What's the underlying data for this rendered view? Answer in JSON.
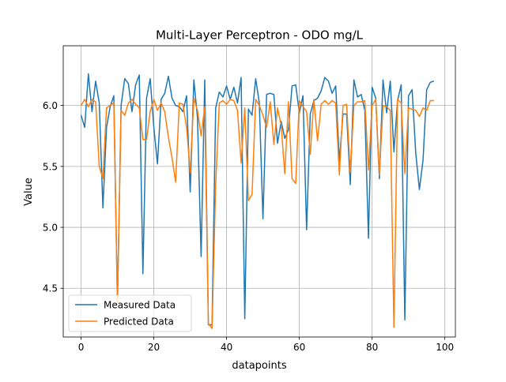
{
  "chart_data": {
    "type": "line",
    "title": "Multi-Layer Perceptron - ODO mg/L",
    "xlabel": "datapoints",
    "ylabel": "Value",
    "xlim": [
      -4.9,
      102.9
    ],
    "ylim": [
      4.1,
      6.49
    ],
    "xticks": [
      0,
      20,
      40,
      60,
      80,
      100
    ],
    "yticks": [
      4.5,
      5.0,
      5.5,
      6.0
    ],
    "xtick_labels": [
      "0",
      "20",
      "40",
      "60",
      "80",
      "100"
    ],
    "ytick_labels": [
      "4.5",
      "5.0",
      "5.5",
      "6.0"
    ],
    "grid": true,
    "legend_position": "lower-left",
    "series": [
      {
        "name": "Measured Data",
        "color": "#1f77b4",
        "values": [
          5.92,
          5.82,
          6.26,
          5.95,
          6.2,
          6.02,
          5.16,
          5.82,
          5.99,
          6.08,
          4.37,
          6.0,
          6.22,
          6.18,
          5.95,
          6.17,
          6.25,
          4.62,
          6.06,
          6.22,
          5.82,
          5.52,
          6.05,
          6.1,
          6.24,
          6.06,
          6.0,
          5.99,
          5.95,
          6.08,
          5.29,
          6.21,
          5.9,
          4.76,
          6.21,
          4.2,
          4.2,
          5.98,
          6.11,
          6.07,
          6.16,
          6.05,
          6.15,
          6.02,
          6.23,
          4.25,
          5.97,
          5.92,
          6.22,
          6.02,
          5.07,
          6.09,
          6.1,
          6.09,
          5.69,
          5.87,
          5.73,
          5.8,
          6.16,
          6.17,
          5.94,
          6.08,
          4.98,
          5.93,
          6.04,
          6.06,
          6.12,
          6.23,
          6.2,
          6.1,
          6.16,
          5.54,
          5.93,
          5.93,
          5.35,
          6.21,
          6.07,
          6.09,
          5.96,
          4.91,
          6.15,
          6.06,
          5.4,
          6.21,
          5.94,
          6.2,
          5.62,
          6.04,
          6.17,
          4.24,
          6.08,
          6.13,
          5.61,
          5.31,
          5.55,
          6.13,
          6.19,
          6.2
        ]
      },
      {
        "name": "Predicted Data",
        "color": "#ff7f0e",
        "values": [
          6.0,
          6.05,
          5.99,
          6.05,
          6.03,
          5.5,
          5.4,
          5.98,
          6.0,
          6.02,
          4.38,
          5.96,
          5.92,
          6.02,
          6.05,
          6.01,
          5.98,
          5.72,
          5.72,
          5.95,
          6.05,
          5.96,
          6.02,
          5.95,
          5.74,
          5.57,
          5.37,
          6.02,
          6.01,
          5.82,
          5.45,
          6.06,
          5.96,
          5.75,
          5.99,
          4.21,
          4.17,
          5.35,
          6.02,
          6.04,
          6.01,
          6.05,
          6.04,
          5.96,
          5.53,
          5.98,
          5.22,
          5.27,
          6.05,
          6.0,
          5.92,
          5.82,
          6.03,
          5.68,
          5.98,
          5.84,
          5.44,
          6.03,
          5.4,
          5.36,
          6.04,
          5.99,
          5.95,
          5.6,
          6.05,
          5.71,
          6.01,
          6.04,
          6.01,
          6.04,
          6.02,
          5.43,
          6.0,
          6.01,
          5.45,
          6.0,
          6.03,
          6.03,
          6.04,
          5.47,
          6.0,
          6.05,
          5.43,
          6.0,
          5.99,
          5.96,
          4.18,
          6.05,
          6.02,
          5.44,
          5.98,
          5.97,
          5.96,
          5.91,
          5.98,
          5.96,
          6.04,
          6.04
        ]
      }
    ]
  }
}
